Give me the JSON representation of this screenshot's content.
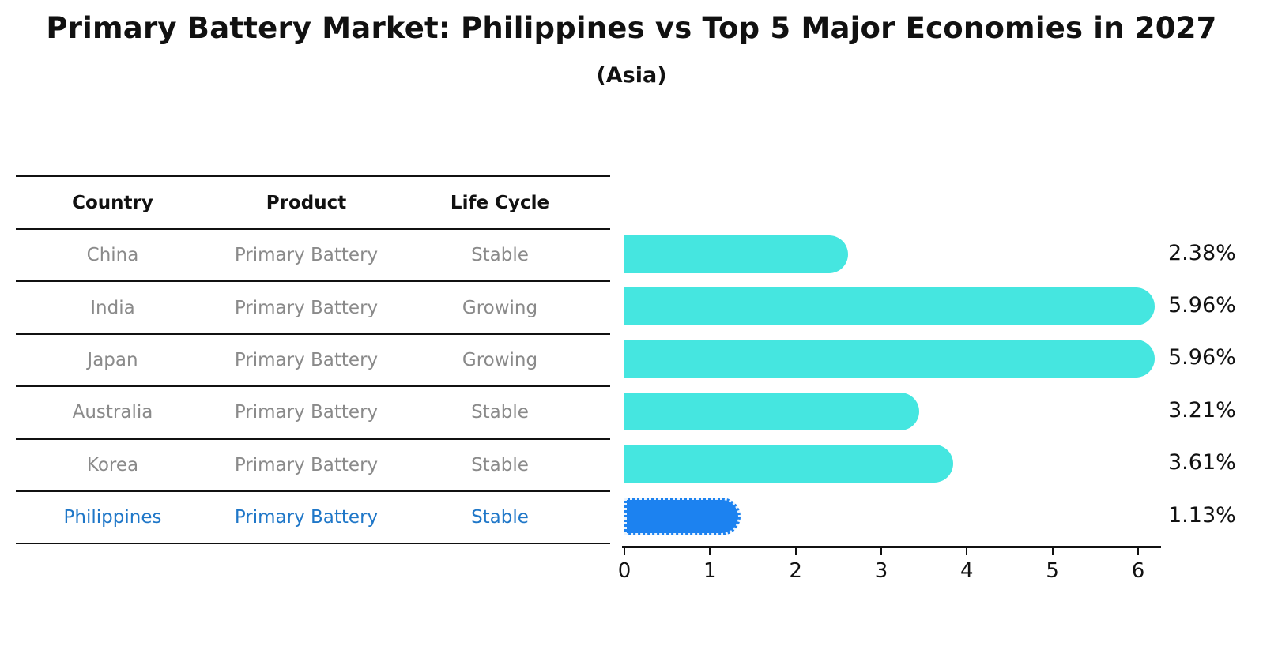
{
  "title": "Primary Battery Market: Philippines vs Top 5 Major Economies in 2027",
  "subtitle": "(Asia)",
  "table": {
    "headers": [
      "Country",
      "Product",
      "Life Cycle"
    ],
    "rows": [
      {
        "country": "China",
        "product": "Primary Battery",
        "life_cycle": "Stable",
        "highlight": false
      },
      {
        "country": "India",
        "product": "Primary Battery",
        "life_cycle": "Growing",
        "highlight": false
      },
      {
        "country": "Japan",
        "product": "Primary Battery",
        "life_cycle": "Growing",
        "highlight": false
      },
      {
        "country": "Australia",
        "product": "Primary Battery",
        "life_cycle": "Stable",
        "highlight": false
      },
      {
        "country": "Korea",
        "product": "Primary Battery",
        "life_cycle": "Stable",
        "highlight": false
      },
      {
        "country": "Philippines",
        "product": "Primary Battery",
        "life_cycle": "Stable",
        "highlight": true
      }
    ]
  },
  "chart_data": {
    "type": "bar",
    "orientation": "horizontal",
    "title": "Primary Battery Market: Philippines vs Top 5 Major Economies in 2027",
    "subtitle": "(Asia)",
    "categories": [
      "China",
      "India",
      "Japan",
      "Australia",
      "Korea",
      "Philippines"
    ],
    "values": [
      2.38,
      5.96,
      5.96,
      3.21,
      3.61,
      1.13
    ],
    "value_labels": [
      "2.38%",
      "5.96%",
      "5.96%",
      "3.21%",
      "3.61%",
      "1.13%"
    ],
    "xticks": [
      0,
      1,
      2,
      3,
      4,
      5,
      6
    ],
    "xlim": [
      0,
      6.27
    ],
    "grid": false,
    "legend": false,
    "bar_color": "#45E6E0",
    "highlight_color": "#1C82F0",
    "highlight_index": 5,
    "highlight_text_color": "#1F77C8",
    "axis_color": "#111111",
    "table_text_color": "#8a8a8a"
  }
}
